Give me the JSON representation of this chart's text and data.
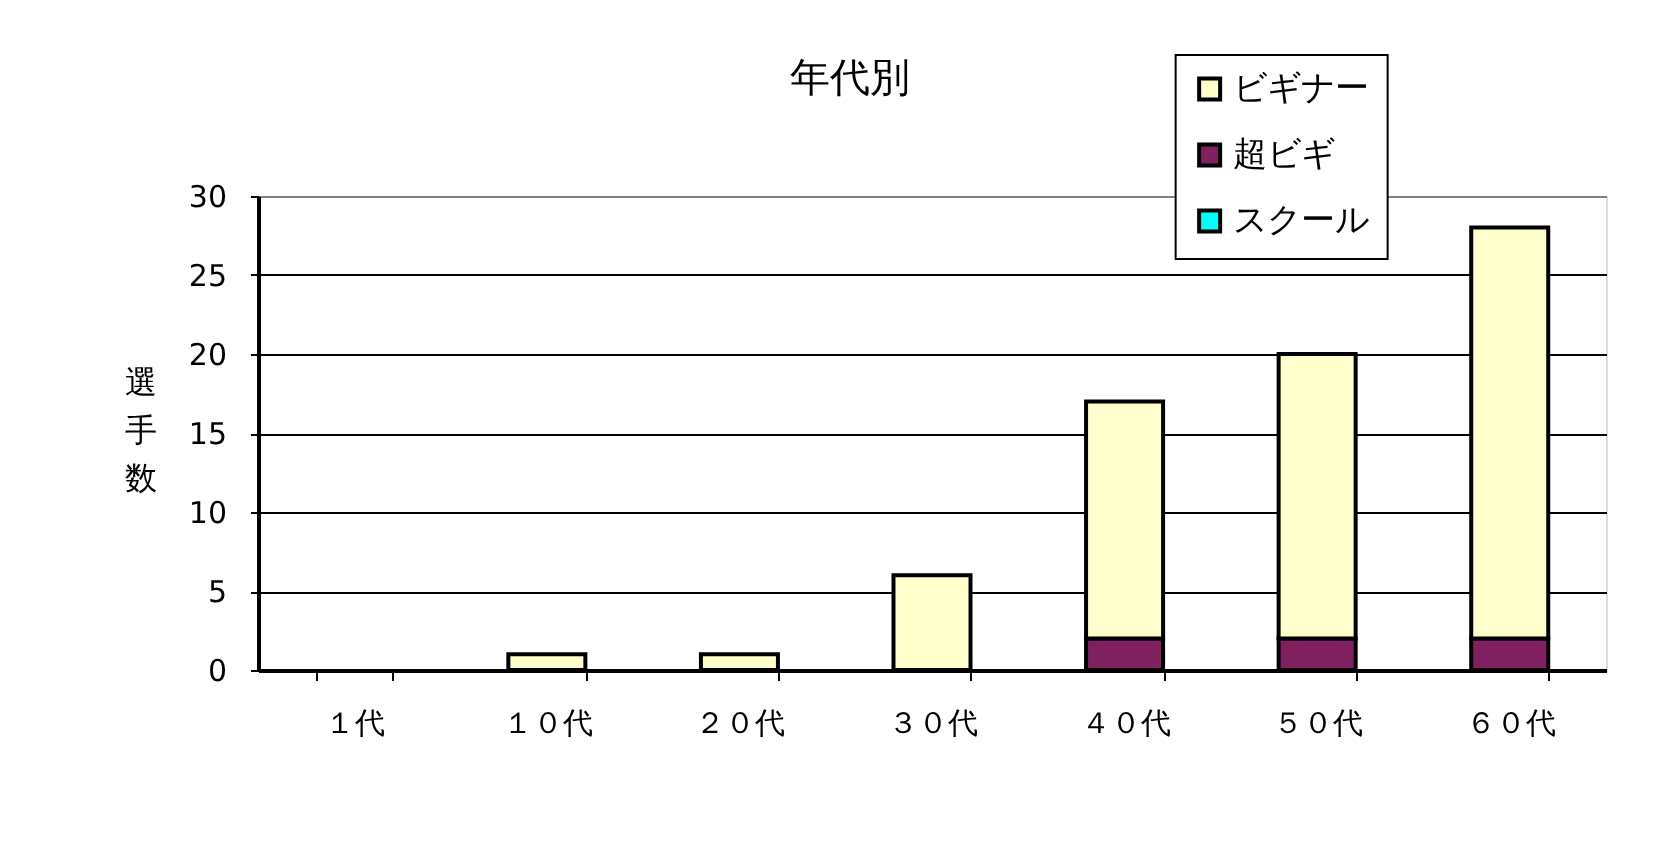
{
  "chart_data": {
    "type": "bar",
    "title": "年代別",
    "ylabel": "選手数",
    "categories": [
      "１代",
      "１０代",
      "２０代",
      "３０代",
      "４０代",
      "５０代",
      "６０代"
    ],
    "stacked": true,
    "series": [
      {
        "name": "スクール",
        "color": "#00ffff",
        "values": [
          0,
          0,
          0,
          0,
          0,
          0,
          0
        ]
      },
      {
        "name": "超ビギ",
        "color": "#802060",
        "values": [
          0,
          0,
          0,
          0,
          2,
          2,
          2
        ]
      },
      {
        "name": "ビギナー",
        "color": "#ffffcc",
        "values": [
          0,
          1,
          1,
          6,
          15,
          18,
          26
        ]
      }
    ],
    "ylim": [
      0,
      30
    ],
    "yticks": [
      0,
      5,
      10,
      15,
      20,
      25,
      30
    ],
    "grid": "y",
    "legend": "top right"
  }
}
